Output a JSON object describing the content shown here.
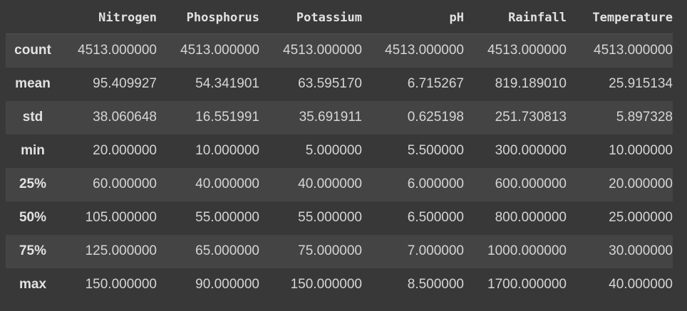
{
  "table": {
    "corner": "",
    "columns": [
      "Nitrogen",
      "Phosphorus",
      "Potassium",
      "pH",
      "Rainfall",
      "Temperature"
    ],
    "rows": [
      {
        "label": "count",
        "values": [
          "4513.000000",
          "4513.000000",
          "4513.000000",
          "4513.000000",
          "4513.000000",
          "4513.000000"
        ]
      },
      {
        "label": "mean",
        "values": [
          "95.409927",
          "54.341901",
          "63.595170",
          "6.715267",
          "819.189010",
          "25.915134"
        ]
      },
      {
        "label": "std",
        "values": [
          "38.060648",
          "16.551991",
          "35.691911",
          "0.625198",
          "251.730813",
          "5.897328"
        ]
      },
      {
        "label": "min",
        "values": [
          "20.000000",
          "10.000000",
          "5.000000",
          "5.500000",
          "300.000000",
          "10.000000"
        ]
      },
      {
        "label": "25%",
        "values": [
          "60.000000",
          "40.000000",
          "40.000000",
          "6.000000",
          "600.000000",
          "20.000000"
        ]
      },
      {
        "label": "50%",
        "values": [
          "105.000000",
          "55.000000",
          "55.000000",
          "6.500000",
          "800.000000",
          "25.000000"
        ]
      },
      {
        "label": "75%",
        "values": [
          "125.000000",
          "65.000000",
          "75.000000",
          "7.000000",
          "1000.000000",
          "30.000000"
        ]
      },
      {
        "label": "max",
        "values": [
          "150.000000",
          "90.000000",
          "150.000000",
          "8.500000",
          "1700.000000",
          "40.000000"
        ]
      }
    ]
  },
  "colors": {
    "background": "#383838",
    "row_stripe": "#444444",
    "text": "#d5d5d5",
    "header_text": "#e2e2e2"
  }
}
